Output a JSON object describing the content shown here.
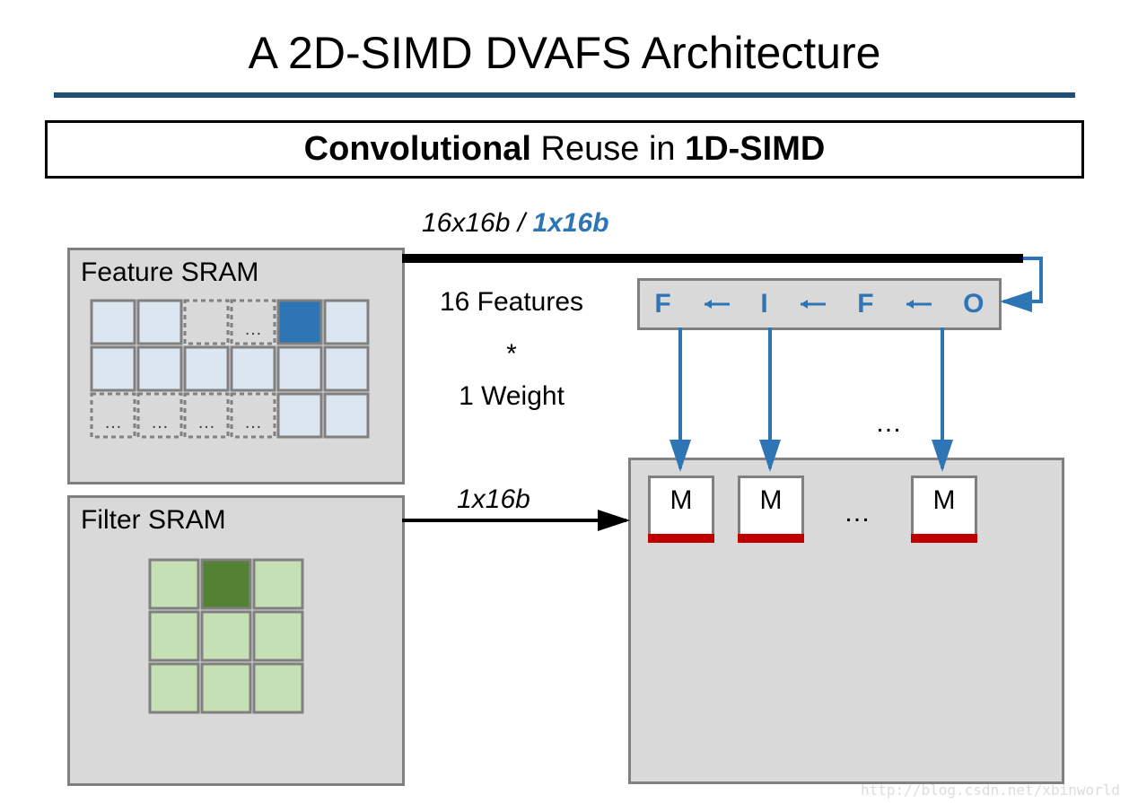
{
  "title": "A 2D-SIMD DVAFS Architecture",
  "title_rule_color": "#1f4e79",
  "subtitle": {
    "bold1": "Convolutional",
    "plain": " Reuse in ",
    "bold2": "1D-SIMD"
  },
  "bus_label": {
    "part1": "16x16b",
    "sep": " / ",
    "part2": "1x16b",
    "part2_color": "#2e75b6"
  },
  "feature_sram": {
    "label": "Feature SRAM",
    "grid": {
      "rows": 3,
      "cols": 6,
      "cell_size": 52,
      "cell_fill": "#dce6f1",
      "cell_stroke": "#808080",
      "dashed_cells": [
        [
          0,
          2
        ],
        [
          0,
          3
        ],
        [
          2,
          0
        ],
        [
          2,
          1
        ],
        [
          2,
          2
        ],
        [
          2,
          3
        ]
      ],
      "ellipsis_cells": [
        [
          0,
          3
        ],
        [
          2,
          0
        ],
        [
          2,
          1
        ],
        [
          2,
          2
        ],
        [
          2,
          3
        ]
      ],
      "highlight_cell": [
        0,
        4
      ],
      "highlight_color": "#2e75b6"
    }
  },
  "filter_sram": {
    "label": "Filter SRAM",
    "grid": {
      "rows": 3,
      "cols": 3,
      "cell_size": 58,
      "cell_fill": "#c5e0b4",
      "cell_stroke": "#808080",
      "highlight_cell": [
        0,
        1
      ],
      "highlight_color": "#548235"
    }
  },
  "mid_labels": {
    "features": "16 Features",
    "star": "*",
    "weight": "1 Weight",
    "filter_bus": "1x16b"
  },
  "fifo": {
    "letters": [
      "F",
      "I",
      "F",
      "O"
    ],
    "text_color": "#2e75b6",
    "arrow_color": "#2e75b6"
  },
  "proc_array": {
    "m_label": "M",
    "m_bar_color": "#c00000",
    "dots": "…"
  },
  "colors": {
    "arrow_blue": "#2e75b6",
    "arrow_black": "#000000",
    "block_fill": "#d9d9d9",
    "block_border": "#808080"
  },
  "watermark": "http://blog.csdn.net/xbinworld"
}
